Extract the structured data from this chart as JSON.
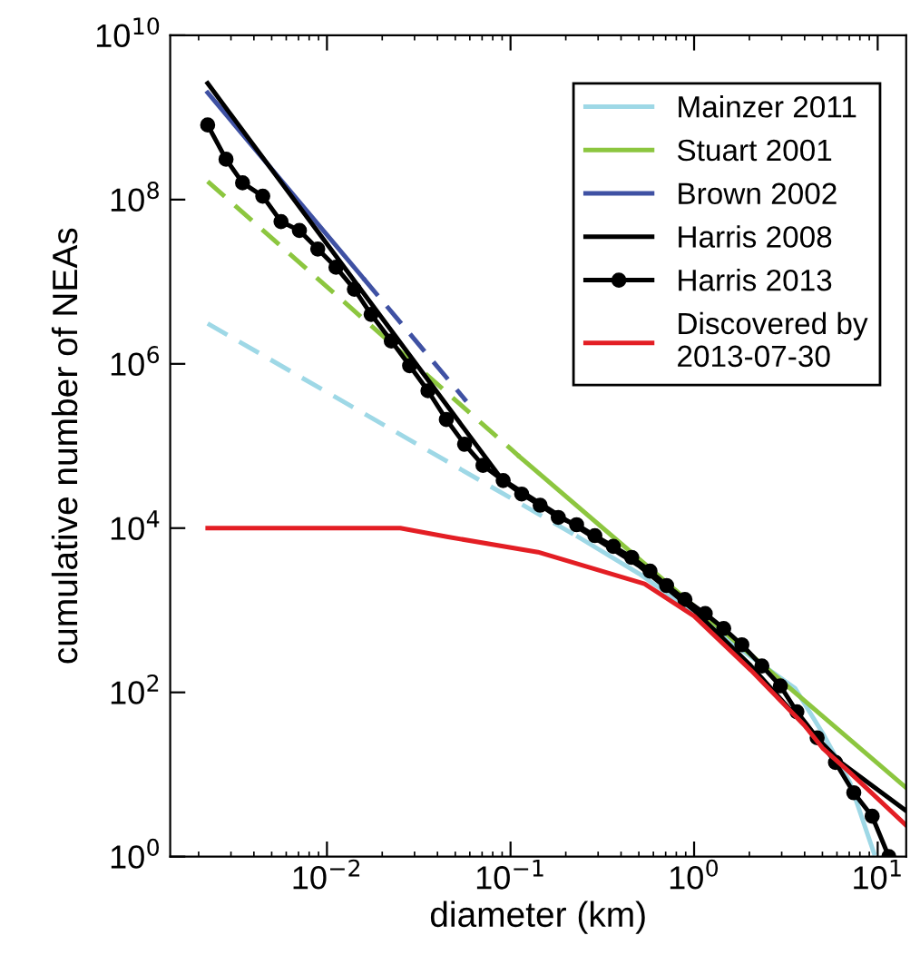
{
  "chart_data": {
    "type": "line",
    "xlabel": "diameter (km)",
    "ylabel": "cumulative number of NEAs",
    "log": "xy",
    "grid": false,
    "legend": "top right",
    "xlim": [
      0.0014,
      14.3
    ],
    "ylim": [
      1,
      10000000000
    ],
    "xticks": [
      {
        "value": 0.01,
        "label": "10$^{−2}$"
      },
      {
        "value": 0.1,
        "label": "10$^{−1}$"
      },
      {
        "value": 1,
        "label": "10$^{0}$"
      },
      {
        "value": 10,
        "label": "10$^{1}$"
      }
    ],
    "yticks": [
      {
        "value": 1,
        "label": "10$^{0}$"
      },
      {
        "value": 100,
        "label": "10$^{2}$"
      },
      {
        "value": 10000,
        "label": "10$^{4}$"
      },
      {
        "value": 1000000,
        "label": "10$^{6}$"
      },
      {
        "value": 100000000,
        "label": "10$^{8}$"
      },
      {
        "value": 10000000000,
        "label": "10$^{10}$"
      }
    ],
    "series": [
      {
        "name": "Mainzer 2011",
        "color": "#9ed8e6",
        "line_style": "solid",
        "x": [
          0.234,
          0.5,
          1,
          2,
          3.55,
          5.01,
          7.08,
          9.55
        ],
        "values": [
          7800,
          2800,
          950,
          280,
          112,
          32,
          7.9,
          1.1
        ]
      },
      {
        "color": "#9ed8e6",
        "line_style": "dashed",
        "x": [
          0.00224,
          0.234
        ],
        "values": [
          3100000,
          7800
        ]
      },
      {
        "name": "Stuart 2001",
        "color": "#8cc63f",
        "line_style": "solid",
        "x": [
          0.112,
          14.3
        ],
        "values": [
          74000,
          6.9
        ]
      },
      {
        "color": "#8cc63f",
        "line_style": "dashed",
        "x": [
          0.00224,
          0.112
        ],
        "values": [
          166000000,
          74000
        ]
      },
      {
        "name": "Brown 2002",
        "color": "#3f51a3",
        "line_style": "solid",
        "x": [
          0.00224,
          0.0158
        ],
        "values": [
          2000000000,
          11000000
        ]
      },
      {
        "color": "#3f51a3",
        "line_style": "dashed",
        "x": [
          0.0158,
          0.0575
        ],
        "values": [
          11000000,
          350000
        ]
      },
      {
        "name": "Harris 2008",
        "color": "#000000",
        "line_style": "solid",
        "x": [
          0.00224,
          0.0891,
          0.2,
          0.5,
          1,
          2,
          3.72,
          6.31,
          14.3
        ],
        "values": [
          2600000000,
          40000,
          12600,
          3500,
          1000,
          220,
          47,
          14,
          3.6
        ]
      },
      {
        "name": "Harris 2013",
        "color": "#000000",
        "line_style": "solid",
        "marker": "circle",
        "x": [
          0.00224,
          0.00282,
          0.00347,
          0.00447,
          0.00562,
          0.00708,
          0.00891,
          0.0112,
          0.0141,
          0.0174,
          0.0224,
          0.0282,
          0.0355,
          0.0447,
          0.0562,
          0.0708,
          0.0912,
          0.115,
          0.145,
          0.182,
          0.229,
          0.288,
          0.363,
          0.457,
          0.575,
          0.708,
          0.891,
          1.15,
          1.45,
          1.82,
          2.34,
          2.95,
          3.63,
          4.68,
          5.89,
          7.41,
          9.33,
          11.5
        ],
        "values": [
          810000000,
          310000000,
          160000000,
          110000000,
          54000000,
          42000000,
          25000000,
          15000000,
          8100000,
          4000000,
          1900000,
          950000,
          470000,
          210000,
          105000,
          58000,
          38000,
          26000,
          19000,
          13500,
          11000,
          8100,
          6000,
          4400,
          3000,
          2000,
          1350,
          910,
          600,
          380,
          210,
          120,
          58,
          28,
          14,
          6,
          3.1,
          1
        ]
      },
      {
        "name": "Discovered by\n2013-07-30",
        "color": "#e31e24",
        "line_style": "solid",
        "x": [
          0.00224,
          0.0251,
          0.0457,
          0.141,
          0.537,
          1,
          2.04,
          3.98,
          5.01,
          6.92,
          14.3
        ],
        "values": [
          10000,
          10000,
          7800,
          5100,
          2100,
          850,
          186,
          40,
          21,
          11,
          2.4
        ]
      }
    ]
  }
}
